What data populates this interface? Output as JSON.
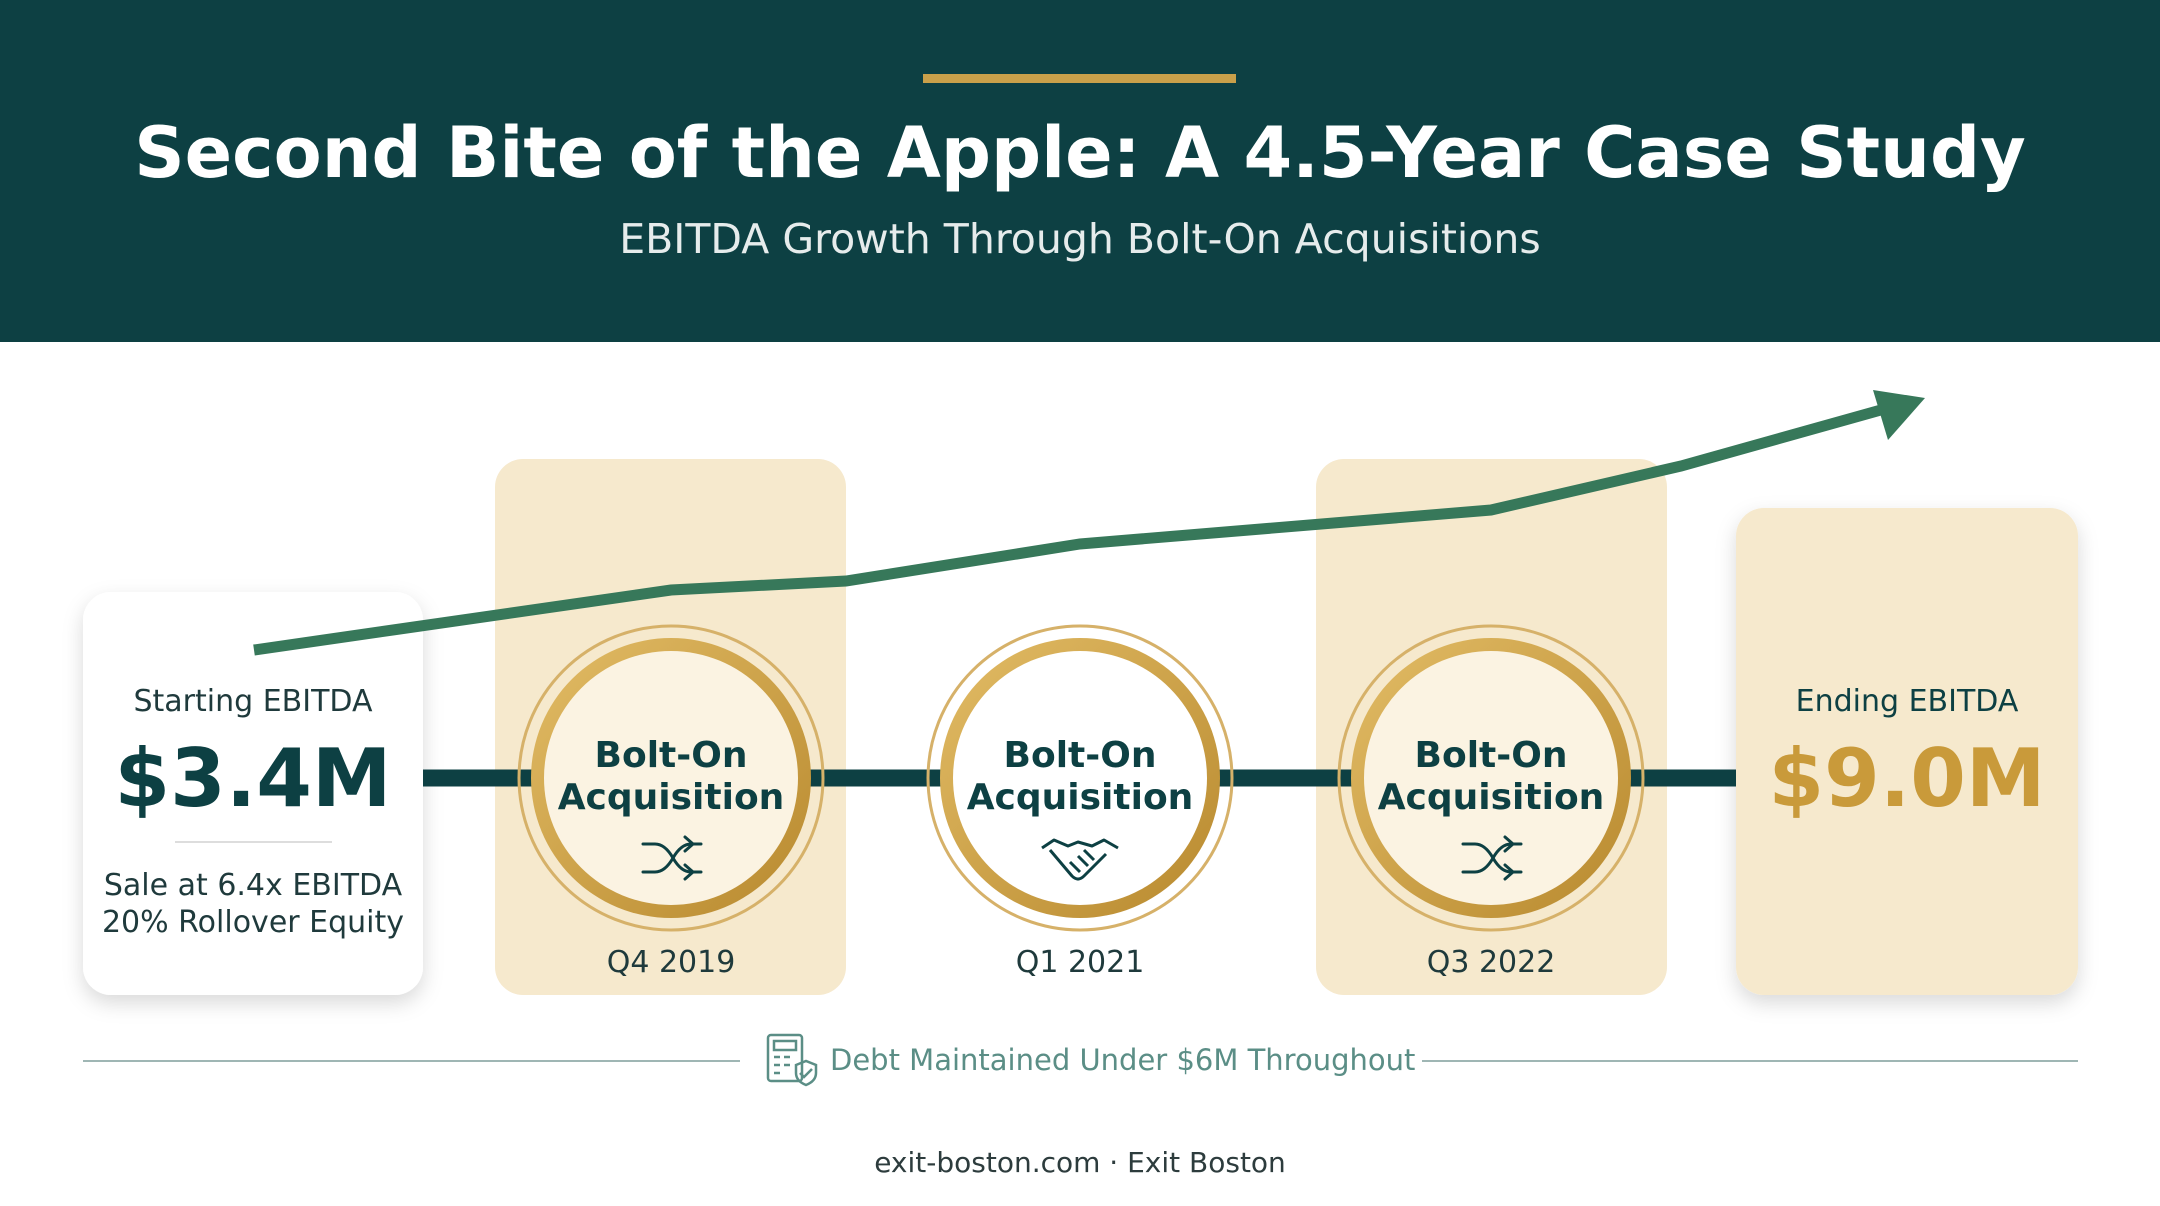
{
  "header": {
    "title": "Second Bite of the Apple: A 4.5-Year Case Study",
    "subtitle": "EBITDA Growth Through Bolt-On Acquisitions"
  },
  "start": {
    "label": "Starting EBITDA",
    "value": "$3.4M",
    "details": [
      "Sale at 6.4x EBITDA",
      "20% Rollover Equity"
    ]
  },
  "milestones": [
    {
      "label": "Bolt-On Acquisition",
      "date": "Q4 2019"
    },
    {
      "label": "Bolt-On Acquisition",
      "date": "Q1 2021"
    },
    {
      "label": "Bolt-On Acquisition",
      "date": "Q3 2022"
    }
  ],
  "end": {
    "label": "Ending EBITDA",
    "value": "$9.0M"
  },
  "note": "Debt Maintained Under $6M Throughout",
  "footer": "exit-boston.com · Exit Boston"
}
